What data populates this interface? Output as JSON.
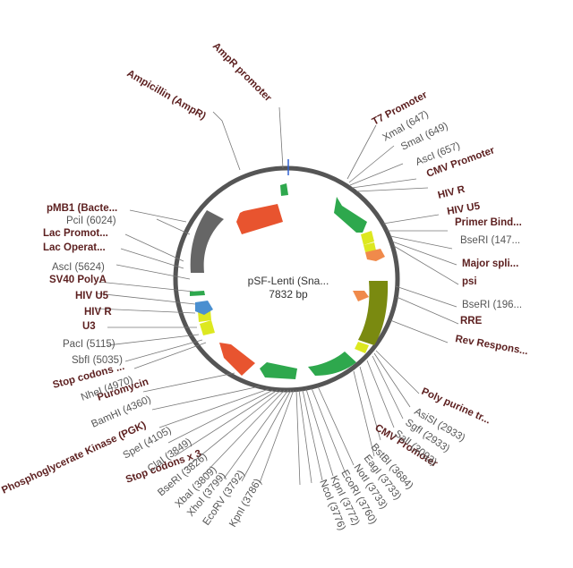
{
  "plasmid": {
    "name": "pSF-Lenti (Sna...",
    "size_label": "7832 bp",
    "colors": {
      "backbone": "#555555",
      "feature_label": "#5c1f1f",
      "site_label": "#555555",
      "leader": "#777777",
      "red": "#e8542f",
      "green": "#2ea84d",
      "dark_grey": "#666666",
      "olive": "#7a8a10",
      "yellow": "#dde820",
      "orange": "#f08a4b",
      "blue": "#4a8fd0",
      "marker_blue": "#3060d0"
    }
  },
  "features": [
    {
      "id": "ampr",
      "label": "Ampicillin (AmpR)"
    },
    {
      "id": "ampr-promoter",
      "label": "AmpR promoter"
    },
    {
      "id": "t7-promoter",
      "label": "T7 Promoter"
    },
    {
      "id": "cmv-promoter-1",
      "label": "CMV Promoter"
    },
    {
      "id": "hiv-r-1",
      "label": "HIV R"
    },
    {
      "id": "hiv-u5-1",
      "label": "HIV U5"
    },
    {
      "id": "primer-bind",
      "label": "Primer Bind..."
    },
    {
      "id": "major-splice",
      "label": "Major spli..."
    },
    {
      "id": "psi",
      "label": "psi"
    },
    {
      "id": "rre",
      "label": "RRE"
    },
    {
      "id": "rev-response",
      "label": "Rev Respons..."
    },
    {
      "id": "poly-purine",
      "label": "Poly purine tr..."
    },
    {
      "id": "cmv-promoter-2",
      "label": "CMV Promoter"
    },
    {
      "id": "stop-codons-x3",
      "label": "Stop codons x 3"
    },
    {
      "id": "pgk",
      "label": "Phosphoglycerate Kinase (PGK)"
    },
    {
      "id": "puromycin",
      "label": "Puromycin"
    },
    {
      "id": "stop-codons",
      "label": "Stop codons ..."
    },
    {
      "id": "u3",
      "label": "U3"
    },
    {
      "id": "hiv-r-2",
      "label": "HIV R"
    },
    {
      "id": "hiv-u5-2",
      "label": "HIV U5"
    },
    {
      "id": "sv40-polya",
      "label": "SV40 PolyA"
    },
    {
      "id": "lac-operator",
      "label": "Lac Operat..."
    },
    {
      "id": "lac-promoter",
      "label": "Lac Promot..."
    },
    {
      "id": "pmb1",
      "label": "pMB1 (Bacte..."
    }
  ],
  "sites": [
    {
      "id": "xmai",
      "label": "XmaI (647)"
    },
    {
      "id": "smai",
      "label": "SmaI (649)"
    },
    {
      "id": "asci-657",
      "label": "AscI (657)"
    },
    {
      "id": "bseri-147",
      "label": "BseRI (147..."
    },
    {
      "id": "bseri-196",
      "label": "BseRI (196..."
    },
    {
      "id": "asisi",
      "label": "AsiSI (2933)"
    },
    {
      "id": "sgfi",
      "label": "SgfI (2933)"
    },
    {
      "id": "sali",
      "label": "SalI (3093)"
    },
    {
      "id": "bstbi",
      "label": "BstBI (3684)"
    },
    {
      "id": "eagi",
      "label": "EagI (3733)"
    },
    {
      "id": "noti",
      "label": "NotI (3733)"
    },
    {
      "id": "ecori-3760",
      "label": "EcoRI (3760)"
    },
    {
      "id": "kpni-3772",
      "label": "KpnI (3772)"
    },
    {
      "id": "ncoi",
      "label": "NcoI (3776)"
    },
    {
      "id": "kpni-3786",
      "label": "KpnI (3786)"
    },
    {
      "id": "ecorv",
      "label": "EcoRV (3792)"
    },
    {
      "id": "xhoi",
      "label": "XhoI (3799)"
    },
    {
      "id": "xbai",
      "label": "XbaI (3809)"
    },
    {
      "id": "bseri-3826",
      "label": "BseRI (3826)"
    },
    {
      "id": "clai",
      "label": "ClaI (3849)"
    },
    {
      "id": "spei",
      "label": "SpeI (4105)"
    },
    {
      "id": "bamhi",
      "label": "BamHI (4360)"
    },
    {
      "id": "nhei",
      "label": "NheI (4970)"
    },
    {
      "id": "sbfi",
      "label": "SbfI (5035)"
    },
    {
      "id": "paci",
      "label": "PacI (5115)"
    },
    {
      "id": "asci-5624",
      "label": "AscI (5624)"
    },
    {
      "id": "pcii",
      "label": "PciI (6024)"
    }
  ]
}
